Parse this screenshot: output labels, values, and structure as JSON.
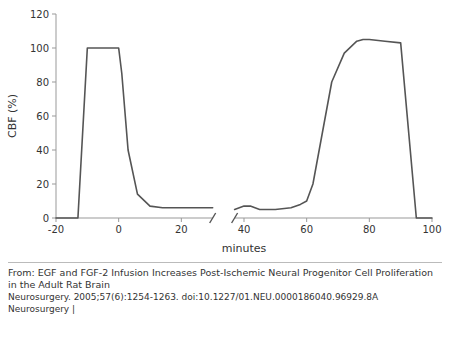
{
  "chart_data": {
    "type": "line",
    "xlabel": "minutes",
    "ylabel": "CBF (%)",
    "xlim": [
      -20,
      100
    ],
    "ylim": [
      0,
      120
    ],
    "xticks": [
      -20,
      0,
      20,
      40,
      60,
      80,
      100
    ],
    "yticks": [
      0,
      20,
      40,
      60,
      80,
      100,
      120
    ],
    "grid": false,
    "series": [
      {
        "color": "#555555",
        "x": [
          -20,
          -15,
          -13,
          -10,
          -5,
          -2,
          0,
          1,
          3,
          6,
          10,
          14,
          18,
          22,
          26,
          30
        ],
        "values": [
          0,
          0,
          0,
          100,
          100,
          100,
          100,
          85,
          40,
          14,
          7,
          6,
          6,
          6,
          6,
          6
        ]
      },
      {
        "color": "#555555",
        "x": [
          37,
          40,
          42,
          45,
          50,
          55,
          58,
          60,
          62,
          65,
          68,
          72,
          76,
          78,
          80,
          85,
          90,
          95,
          100
        ],
        "values": [
          5,
          7,
          7,
          5,
          5,
          6,
          8,
          10,
          20,
          50,
          80,
          97,
          104,
          105,
          105,
          104,
          103,
          0,
          0
        ]
      }
    ],
    "annotations": [
      "From: EGF and FGF-2 Infusion Increases Post-Ischemic Neural Progenitor Cell Proliferation in the Adult Rat Brain",
      "Neurosurgery. 2005;57(6):1254-1263. doi:10.1227/01.NEU.0000186040.96929.8A",
      "Neurosurgery |"
    ]
  }
}
